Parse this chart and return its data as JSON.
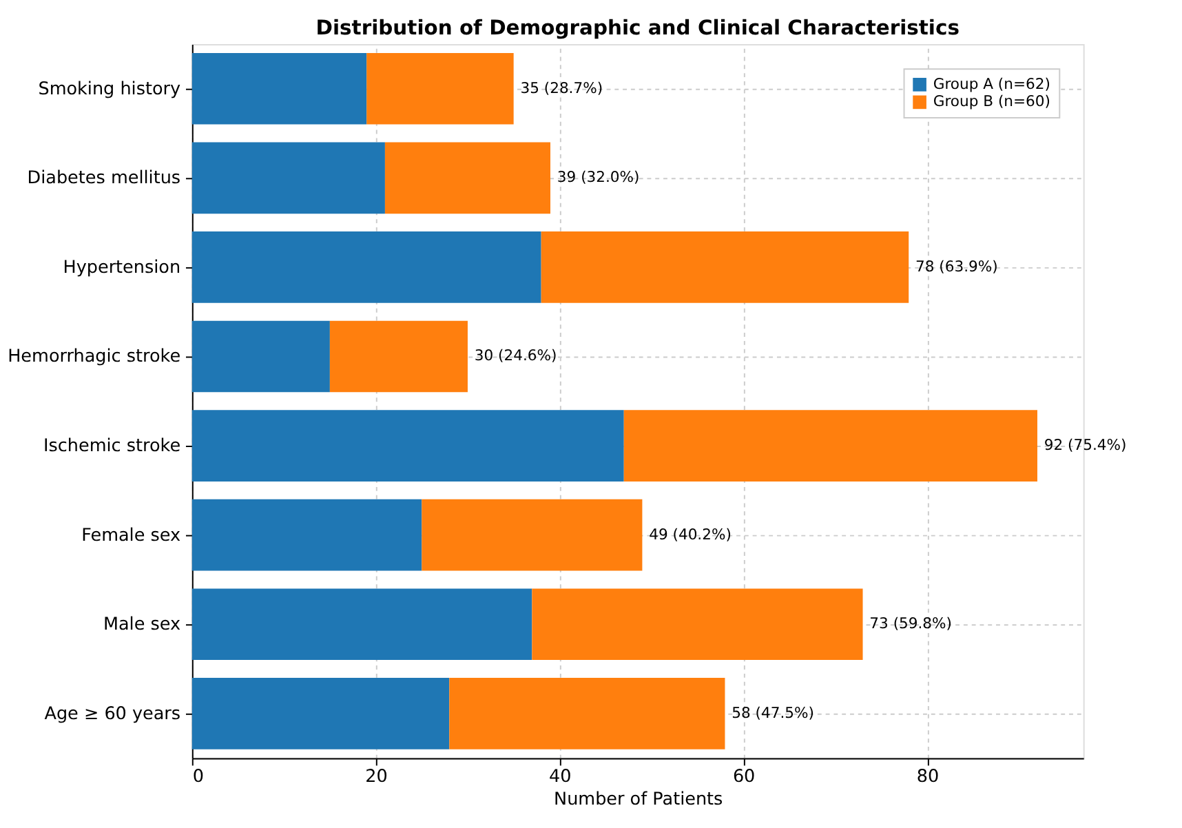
{
  "chart_data": {
    "type": "bar",
    "orientation": "horizontal",
    "stacked": true,
    "title": "Distribution of Demographic and Clinical Characteristics",
    "xlabel": "Number of Patients",
    "categories": [
      "Smoking history",
      "Diabetes mellitus",
      "Hypertension",
      "Hemorrhagic stroke",
      "Ischemic stroke",
      "Female sex",
      "Male sex",
      "Age ≥ 60 years"
    ],
    "series": [
      {
        "name": "Group A (n=62)",
        "color": "#1f77b4",
        "values": [
          19,
          21,
          38,
          15,
          47,
          25,
          37,
          28
        ]
      },
      {
        "name": "Group B (n=60)",
        "color": "#ff7f0e",
        "values": [
          16,
          18,
          40,
          15,
          45,
          24,
          36,
          30
        ]
      }
    ],
    "totals": [
      "35 (28.7%)",
      "39 (32.0%)",
      "78 (63.9%)",
      "30 (24.6%)",
      "92 (75.4%)",
      "49 (40.2%)",
      "73 (59.8%)",
      "58 (47.5%)"
    ],
    "xlim": [
      0,
      97
    ],
    "xticks": [
      0,
      20,
      40,
      60,
      80
    ],
    "grid": true,
    "legend": "top right"
  }
}
